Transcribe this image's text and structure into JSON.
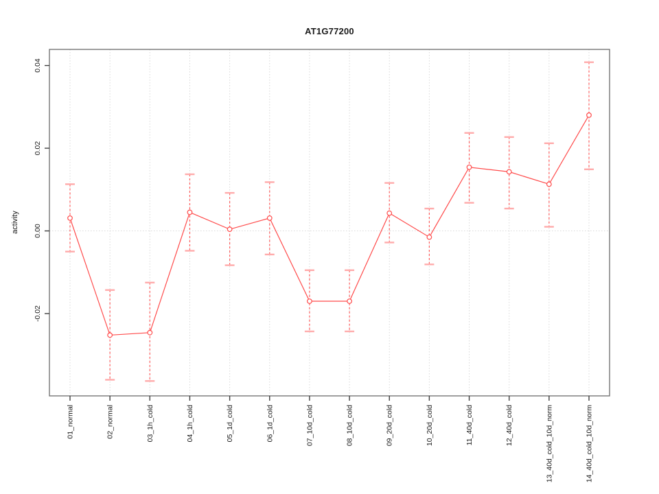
{
  "figure": {
    "background": "#ffffff"
  },
  "chart_data": {
    "type": "line",
    "title": "AT1G77200",
    "xlabel": "",
    "ylabel": "activity",
    "legend": "none",
    "grid": "dotted vertical gridline at each category; dotted horizontal gridline at y=0",
    "categories": [
      "01_normal",
      "02_normal",
      "03_1h_cold",
      "04_1h_cold",
      "05_1d_cold",
      "06_1d_cold",
      "07_10d_cold",
      "08_10d_cold",
      "09_20d_cold",
      "10_20d_cold",
      "11_40d_cold",
      "12_40d_cold",
      "13_40d_cold_10d_norm",
      "14_40d_cold_10d_norm"
    ],
    "series": [
      {
        "name": "activity",
        "marker": "open-circle",
        "values": [
          0.0031,
          -0.0252,
          -0.0246,
          0.0045,
          0.0004,
          0.0031,
          -0.017,
          -0.017,
          0.0043,
          -0.0015,
          0.0154,
          0.0143,
          0.0113,
          0.028
        ],
        "error_high": [
          0.0113,
          -0.0143,
          -0.0125,
          0.0137,
          0.0092,
          0.0118,
          -0.0095,
          -0.0095,
          0.0116,
          0.0054,
          0.0237,
          0.0227,
          0.0212,
          0.0408
        ],
        "error_low": [
          -0.005,
          -0.036,
          -0.0363,
          -0.0048,
          -0.0083,
          -0.0057,
          -0.0243,
          -0.0243,
          -0.0028,
          -0.0081,
          0.0068,
          0.0054,
          0.001,
          0.0149
        ]
      }
    ],
    "ylim": [
      -0.0399,
      0.0439
    ],
    "yticks": [
      {
        "value": -0.02,
        "label": "-0.02"
      },
      {
        "value": 0.0,
        "label": "0.00"
      },
      {
        "value": 0.02,
        "label": "0.02"
      },
      {
        "value": 0.04,
        "label": "0.04"
      }
    ],
    "colors": {
      "line": "#ff4a4a",
      "marker": "#ff4a4a",
      "error_stem": "#ff5a5a",
      "error_cap": "#ffabab",
      "gridline": "#d8d8d8",
      "box": "#757575",
      "tick": "#3f3f3f",
      "text": "#1a1a1a"
    }
  }
}
